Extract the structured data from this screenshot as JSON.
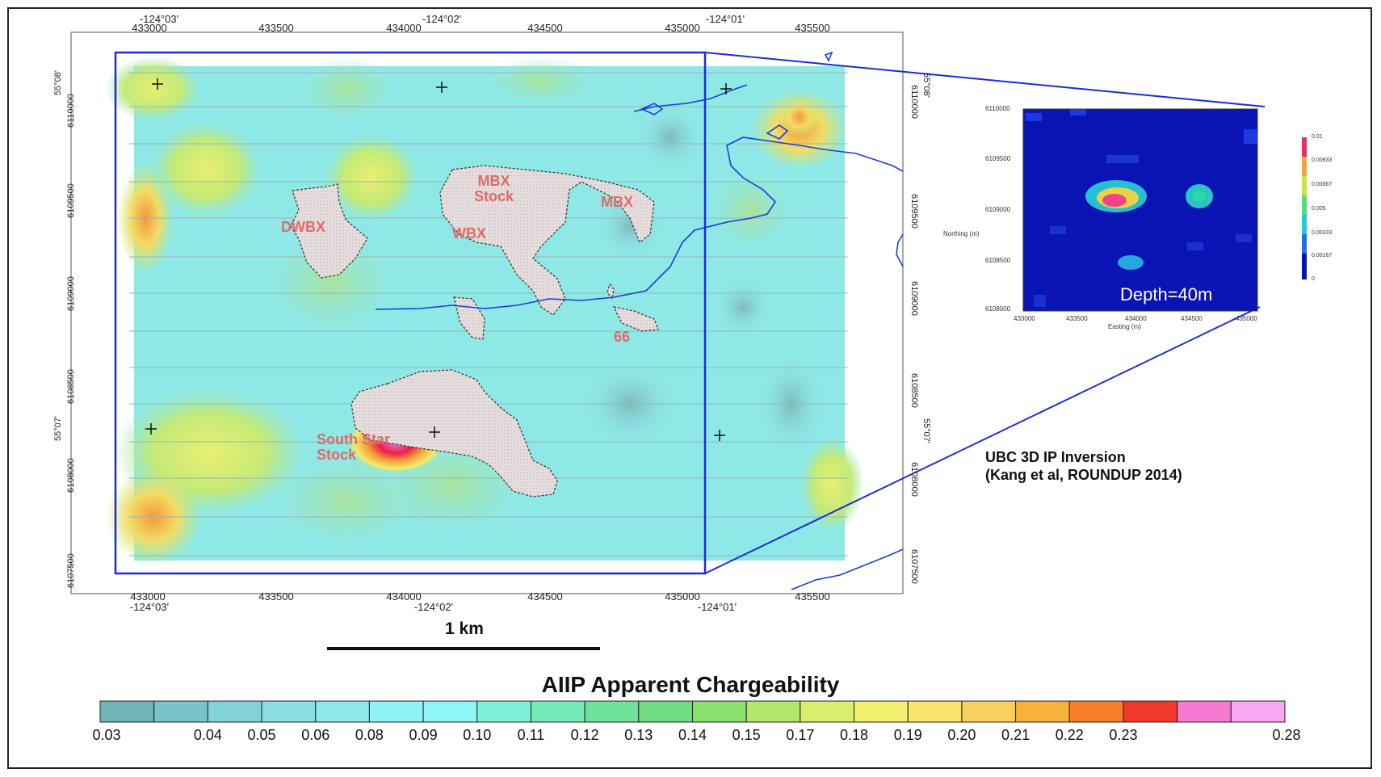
{
  "map": {
    "scale_bar_label": "1 km",
    "easting_ticks": [
      "433000",
      "433500",
      "434000",
      "434500",
      "435000",
      "435500"
    ],
    "lon_ticks": [
      "-124°03'",
      "-124°02'",
      "-124°01'"
    ],
    "northing_ticks": [
      "6110000",
      "6109500",
      "6109000",
      "6108500",
      "6108000",
      "6107500"
    ],
    "lat_ticks": [
      "55°08'",
      "55°07'"
    ],
    "units": {
      "dwbx": "DWBX",
      "mbx_stock": "MBX\nStock",
      "mbx": "MBX",
      "wbx": "WBX",
      "unit_66": "66",
      "south_star": "South Star\nStock"
    }
  },
  "inset": {
    "depth_label": "Depth=40m",
    "x_axis_label": "Easting (m)",
    "y_axis_label": "Northing (m)",
    "x_ticks": [
      "433000",
      "433500",
      "434000",
      "434500",
      "435000"
    ],
    "y_ticks": [
      "6110000",
      "6109500",
      "6109000",
      "6108500",
      "6108000"
    ],
    "colorbar_ticks": [
      "0.01",
      "0.00833",
      "0.00667",
      "0.005",
      "0.00333",
      "0.00167",
      "0"
    ],
    "citation_line1": "UBC 3D IP Inversion",
    "citation_line2": "(Kang et al, ROUNDUP 2014)"
  },
  "legend": {
    "title": "AIIP Apparent Chargeability",
    "labels": [
      "0.03",
      "0.04",
      "0.05",
      "0.06",
      "0.08",
      "0.09",
      "0.10",
      "0.11",
      "0.12",
      "0.13",
      "0.14",
      "0.15",
      "0.17",
      "0.18",
      "0.19",
      "0.20",
      "0.21",
      "0.22",
      "0.23",
      "0.28"
    ],
    "colors": [
      "#6fb4b8",
      "#78c4c8",
      "#82d3d8",
      "#8adfe2",
      "#8ee8ec",
      "#8ff2f4",
      "#8ef6f6",
      "#7ef1d8",
      "#76eab8",
      "#6fe39c",
      "#6fdc84",
      "#8ae06f",
      "#b3e66a",
      "#d8ee6c",
      "#f1f06e",
      "#f8e46a",
      "#f9cf5e",
      "#f8b23c",
      "#f77f2c",
      "#f0392a",
      "#f57ad0",
      "#f7a8ee"
    ]
  }
}
